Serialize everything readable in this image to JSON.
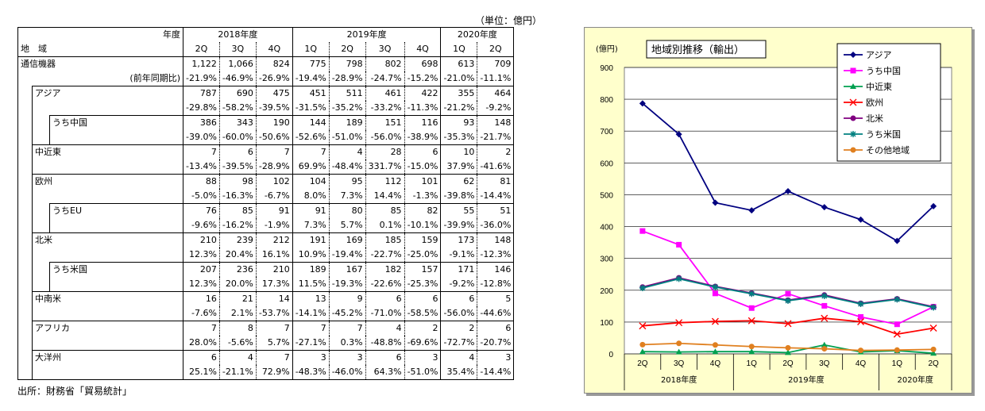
{
  "unit_note": "（単位：億円）",
  "source": "出所：財務省「貿易統計」",
  "table": {
    "corner_top": "年度",
    "corner_bottom": "地　域",
    "years": [
      "2018年度",
      "2019年度",
      "2020年度"
    ],
    "quarters": [
      "2Q",
      "3Q",
      "4Q",
      "1Q",
      "2Q",
      "3Q",
      "4Q",
      "1Q",
      "2Q"
    ],
    "rows": [
      {
        "label": "通信機器",
        "label2": "(前年同期比)",
        "indent": 0,
        "values": [
          "1,122",
          "1,066",
          "824",
          "775",
          "798",
          "802",
          "698",
          "613",
          "709"
        ],
        "pct": [
          "-21.9%",
          "-46.9%",
          "-26.9%",
          "-19.4%",
          "-28.9%",
          "-24.7%",
          "-15.2%",
          "-21.0%",
          "-11.1%"
        ]
      },
      {
        "label": "アジア",
        "label2": "",
        "indent": 1,
        "values": [
          "787",
          "690",
          "475",
          "451",
          "511",
          "461",
          "422",
          "355",
          "464"
        ],
        "pct": [
          "-29.8%",
          "-58.2%",
          "-39.5%",
          "-31.5%",
          "-35.2%",
          "-33.2%",
          "-11.3%",
          "-21.2%",
          "-9.2%"
        ]
      },
      {
        "label": "うち中国",
        "label2": "",
        "indent": 2,
        "values": [
          "386",
          "343",
          "190",
          "144",
          "189",
          "151",
          "116",
          "93",
          "148"
        ],
        "pct": [
          "-39.0%",
          "-60.0%",
          "-50.6%",
          "-52.6%",
          "-51.0%",
          "-56.0%",
          "-38.9%",
          "-35.3%",
          "-21.7%"
        ]
      },
      {
        "label": "中近東",
        "label2": "",
        "indent": 1,
        "values": [
          "7",
          "6",
          "7",
          "7",
          "4",
          "28",
          "6",
          "10",
          "2"
        ],
        "pct": [
          "-13.4%",
          "-39.5%",
          "-28.9%",
          "69.9%",
          "-48.4%",
          "331.7%",
          "-15.0%",
          "37.9%",
          "-41.6%"
        ]
      },
      {
        "label": "欧州",
        "label2": "",
        "indent": 1,
        "values": [
          "88",
          "98",
          "102",
          "104",
          "95",
          "112",
          "101",
          "62",
          "81"
        ],
        "pct": [
          "-5.0%",
          "-16.3%",
          "-6.7%",
          "8.0%",
          "7.3%",
          "14.4%",
          "-1.3%",
          "-39.8%",
          "-14.4%"
        ]
      },
      {
        "label": "うちEU",
        "label2": "",
        "indent": 2,
        "values": [
          "76",
          "85",
          "91",
          "91",
          "80",
          "85",
          "82",
          "55",
          "51"
        ],
        "pct": [
          "-9.6%",
          "-16.2%",
          "-1.9%",
          "7.3%",
          "5.7%",
          "0.1%",
          "-10.1%",
          "-39.9%",
          "-36.0%"
        ]
      },
      {
        "label": "北米",
        "label2": "",
        "indent": 1,
        "values": [
          "210",
          "239",
          "212",
          "191",
          "169",
          "185",
          "159",
          "173",
          "148"
        ],
        "pct": [
          "12.3%",
          "20.4%",
          "16.1%",
          "10.9%",
          "-19.4%",
          "-22.7%",
          "-25.0%",
          "-9.1%",
          "-12.3%"
        ]
      },
      {
        "label": "うち米国",
        "label2": "",
        "indent": 2,
        "values": [
          "207",
          "236",
          "210",
          "189",
          "167",
          "182",
          "157",
          "171",
          "146"
        ],
        "pct": [
          "12.3%",
          "20.0%",
          "17.3%",
          "11.5%",
          "-19.3%",
          "-22.6%",
          "-25.3%",
          "-9.2%",
          "-12.8%"
        ]
      },
      {
        "label": "中南米",
        "label2": "",
        "indent": 1,
        "values": [
          "16",
          "21",
          "14",
          "13",
          "9",
          "6",
          "6",
          "6",
          "5"
        ],
        "pct": [
          "-7.6%",
          "2.1%",
          "-53.7%",
          "-14.1%",
          "-45.2%",
          "-71.0%",
          "-58.5%",
          "-56.0%",
          "-44.6%"
        ]
      },
      {
        "label": "アフリカ",
        "label2": "",
        "indent": 1,
        "values": [
          "7",
          "8",
          "7",
          "7",
          "7",
          "4",
          "2",
          "2",
          "6"
        ],
        "pct": [
          "28.0%",
          "-5.6%",
          "5.7%",
          "-27.1%",
          "0.3%",
          "-48.8%",
          "-69.6%",
          "-72.7%",
          "-20.7%"
        ]
      },
      {
        "label": "大洋州",
        "label2": "",
        "indent": 1,
        "values": [
          "6",
          "4",
          "7",
          "3",
          "3",
          "6",
          "3",
          "4",
          "3"
        ],
        "pct": [
          "25.1%",
          "-21.1%",
          "72.9%",
          "-48.3%",
          "-46.0%",
          "64.3%",
          "-51.0%",
          "35.4%",
          "-14.4%"
        ]
      }
    ]
  },
  "chart_data": {
    "type": "line",
    "title": "地域別推移（輸出）",
    "ylabel": "(億円)",
    "ylim": [
      0,
      900
    ],
    "yticks": [
      0,
      100,
      200,
      300,
      400,
      500,
      600,
      700,
      800,
      900
    ],
    "categories": [
      "2Q",
      "3Q",
      "4Q",
      "1Q",
      "2Q",
      "3Q",
      "4Q",
      "1Q",
      "2Q"
    ],
    "year_groups": [
      {
        "label": "2018年度",
        "count": 3
      },
      {
        "label": "2019年度",
        "count": 4
      },
      {
        "label": "2020年度",
        "count": 2
      }
    ],
    "grid": true,
    "legend_position": "top-right",
    "series": [
      {
        "name": "アジア",
        "color": "#000080",
        "marker": "diamond",
        "values": [
          787,
          690,
          475,
          451,
          511,
          461,
          422,
          355,
          464
        ]
      },
      {
        "name": "うち中国",
        "color": "#ff00ff",
        "marker": "square",
        "values": [
          386,
          343,
          190,
          144,
          189,
          151,
          116,
          93,
          148
        ]
      },
      {
        "name": "中近東",
        "color": "#00a050",
        "marker": "triangle",
        "values": [
          7,
          6,
          7,
          7,
          4,
          28,
          6,
          10,
          2
        ]
      },
      {
        "name": "欧州",
        "color": "#ff0000",
        "marker": "x",
        "values": [
          88,
          98,
          102,
          104,
          95,
          112,
          101,
          62,
          81
        ]
      },
      {
        "name": "北米",
        "color": "#800080",
        "marker": "circle",
        "values": [
          210,
          239,
          212,
          191,
          169,
          185,
          159,
          173,
          148
        ]
      },
      {
        "name": "うち米国",
        "color": "#008080",
        "marker": "star",
        "values": [
          207,
          236,
          210,
          189,
          167,
          182,
          157,
          171,
          146
        ]
      },
      {
        "name": "その他地域",
        "color": "#e08020",
        "marker": "circle",
        "values": [
          29,
          33,
          28,
          23,
          19,
          16,
          11,
          12,
          14
        ]
      }
    ]
  }
}
